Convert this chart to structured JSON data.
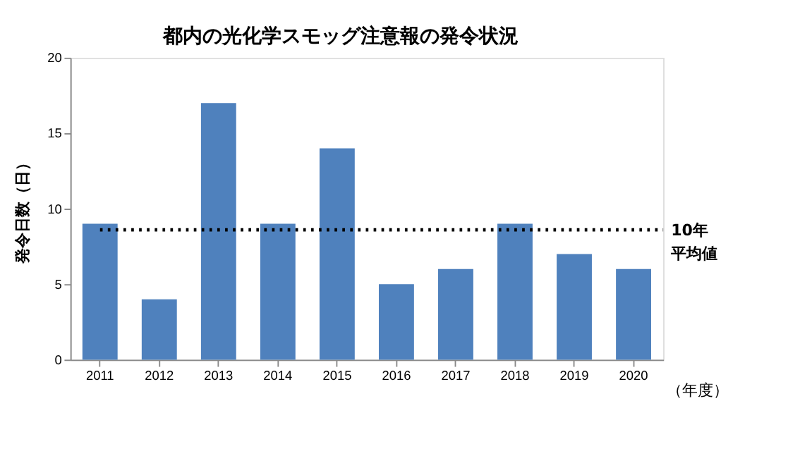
{
  "chart_data": {
    "type": "bar",
    "title": "都内の光化学スモッグ注意報の発令状況",
    "ylabel": "発令日数（日）",
    "xlabel": "（年度）",
    "categories": [
      "2011",
      "2012",
      "2013",
      "2014",
      "2015",
      "2016",
      "2017",
      "2018",
      "2019",
      "2020"
    ],
    "values": [
      9,
      4,
      17,
      9,
      14,
      5,
      6,
      9,
      7,
      6
    ],
    "color": "#4f81bd",
    "ylim": [
      0,
      20
    ],
    "yticks": [
      0,
      5,
      10,
      15,
      20
    ],
    "grid": false,
    "ref_lines": [
      {
        "axis": "y",
        "value": 8.6,
        "label": "10年平均値",
        "color": "#000000",
        "line_style": "dotted"
      }
    ]
  }
}
